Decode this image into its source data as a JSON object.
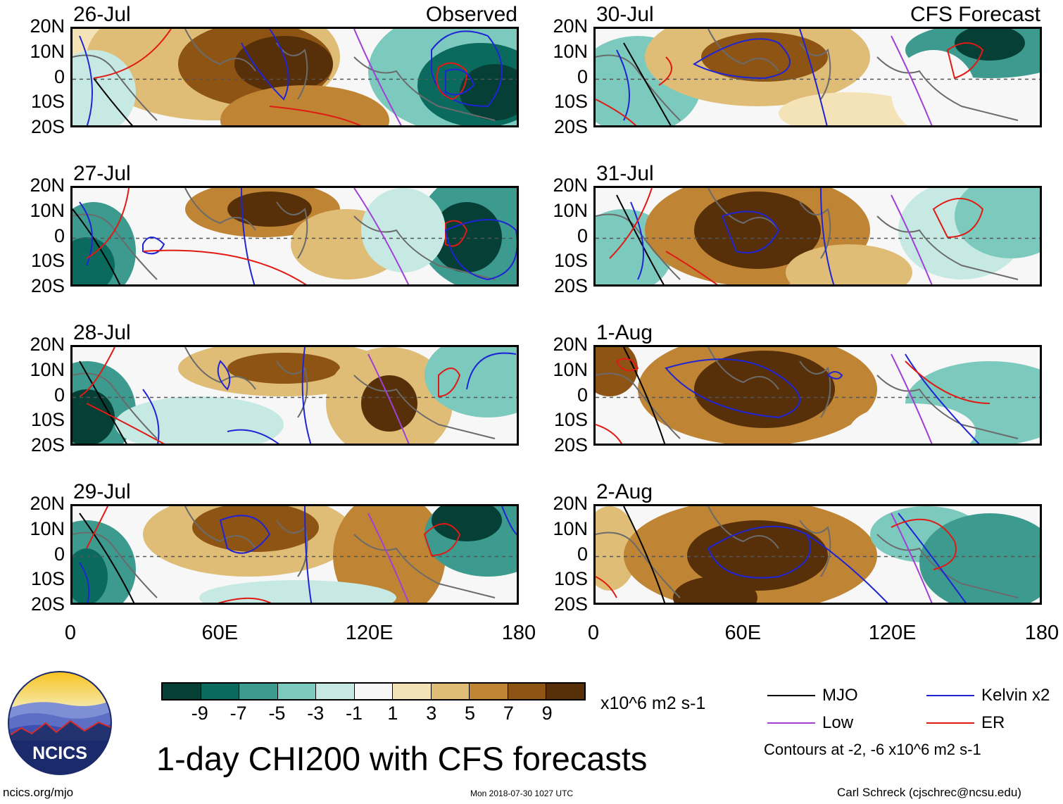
{
  "colors": {
    "mjo": "#000000",
    "kelvin": "#1f24d4",
    "low": "#a23fd6",
    "er": "#e01a14"
  },
  "left_column": {
    "header_label": "Observed",
    "panels": [
      "26-Jul",
      "27-Jul",
      "28-Jul",
      "29-Jul"
    ]
  },
  "right_column": {
    "header_label": "CFS Forecast",
    "panels": [
      "30-Jul",
      "31-Jul",
      "1-Aug",
      "2-Aug"
    ]
  },
  "lat_labels": [
    "20N",
    "10N",
    "0",
    "10S",
    "20S"
  ],
  "lon_labels": [
    "0",
    "60E",
    "120E",
    "180"
  ],
  "colorbar": {
    "ticks": [
      "-9",
      "-7",
      "-5",
      "-3",
      "-1",
      "1",
      "3",
      "5",
      "7",
      "9"
    ],
    "colors": [
      "#053f35",
      "#0b6a5e",
      "#3c9a8e",
      "#7ccabd",
      "#c6eae3",
      "#f7f7f7",
      "#f5e3b8",
      "#dfbd77",
      "#bf8434",
      "#8e5414",
      "#573009"
    ],
    "units": "x10^6 m2 s-1"
  },
  "title": "1-day CHI200 with CFS forecasts",
  "legend": {
    "mjo": "MJO",
    "kelvin": "Kelvin x2",
    "low": "Low",
    "er": "ER",
    "contours_note": "Contours at -2, -6 x10^6 m2 s-1"
  },
  "footer": {
    "left": "ncics.org/mjo",
    "center": "Mon 2018-07-30 1027 UTC",
    "right": "Carl Schreck (cjschrec@ncsu.edu)"
  },
  "logo_text": "NCICS"
}
